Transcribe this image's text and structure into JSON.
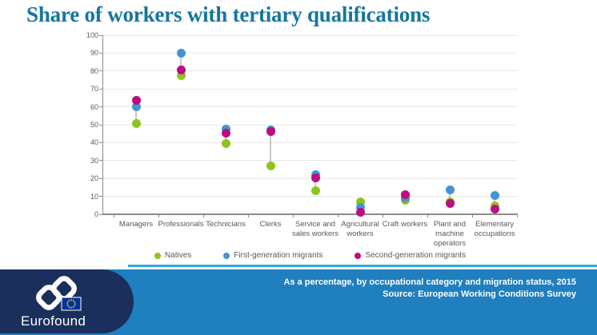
{
  "theme": {
    "title_color": "#17759E",
    "footer_bar_color": "#1F7FBF",
    "brand_navy_color": "#1A2F5B",
    "divider_color": "#2FA9E1",
    "text_gray": "#595959"
  },
  "chart_data": {
    "type": "scatter",
    "title": "Share of workers with tertiary qualifications",
    "categories": [
      "Managers",
      "Professionals",
      "Technicians",
      "Clerks",
      "Service and\nsales workers",
      "Agricultural\nworkers",
      "Craft workers",
      "Plant and\nmachine\noperators",
      "Elementary\noccupations"
    ],
    "series": [
      {
        "name": "Natives",
        "color": "#8FC31F",
        "values": [
          50.5,
          77.5,
          39.5,
          27,
          13,
          7,
          8,
          7,
          4.5
        ]
      },
      {
        "name": "First-generation migrants",
        "color": "#4394D4",
        "values": [
          60,
          90,
          47.5,
          47,
          22,
          4,
          9,
          13.5,
          10.5
        ]
      },
      {
        "name": "Second-generation migrants",
        "color": "#BB0E82",
        "values": [
          63.5,
          80.5,
          45.5,
          46,
          20.5,
          1,
          11,
          6,
          3
        ]
      }
    ],
    "ylim": [
      0,
      100
    ],
    "ytick_step": 10,
    "grid": true,
    "legend_position": "bottom",
    "xlabel": "",
    "ylabel": ""
  },
  "footer": {
    "subtitle": "As a percentage, by occupational category and migration status, 2015",
    "source": "Source: European Working Conditions Survey",
    "brand": "Eurofound"
  }
}
